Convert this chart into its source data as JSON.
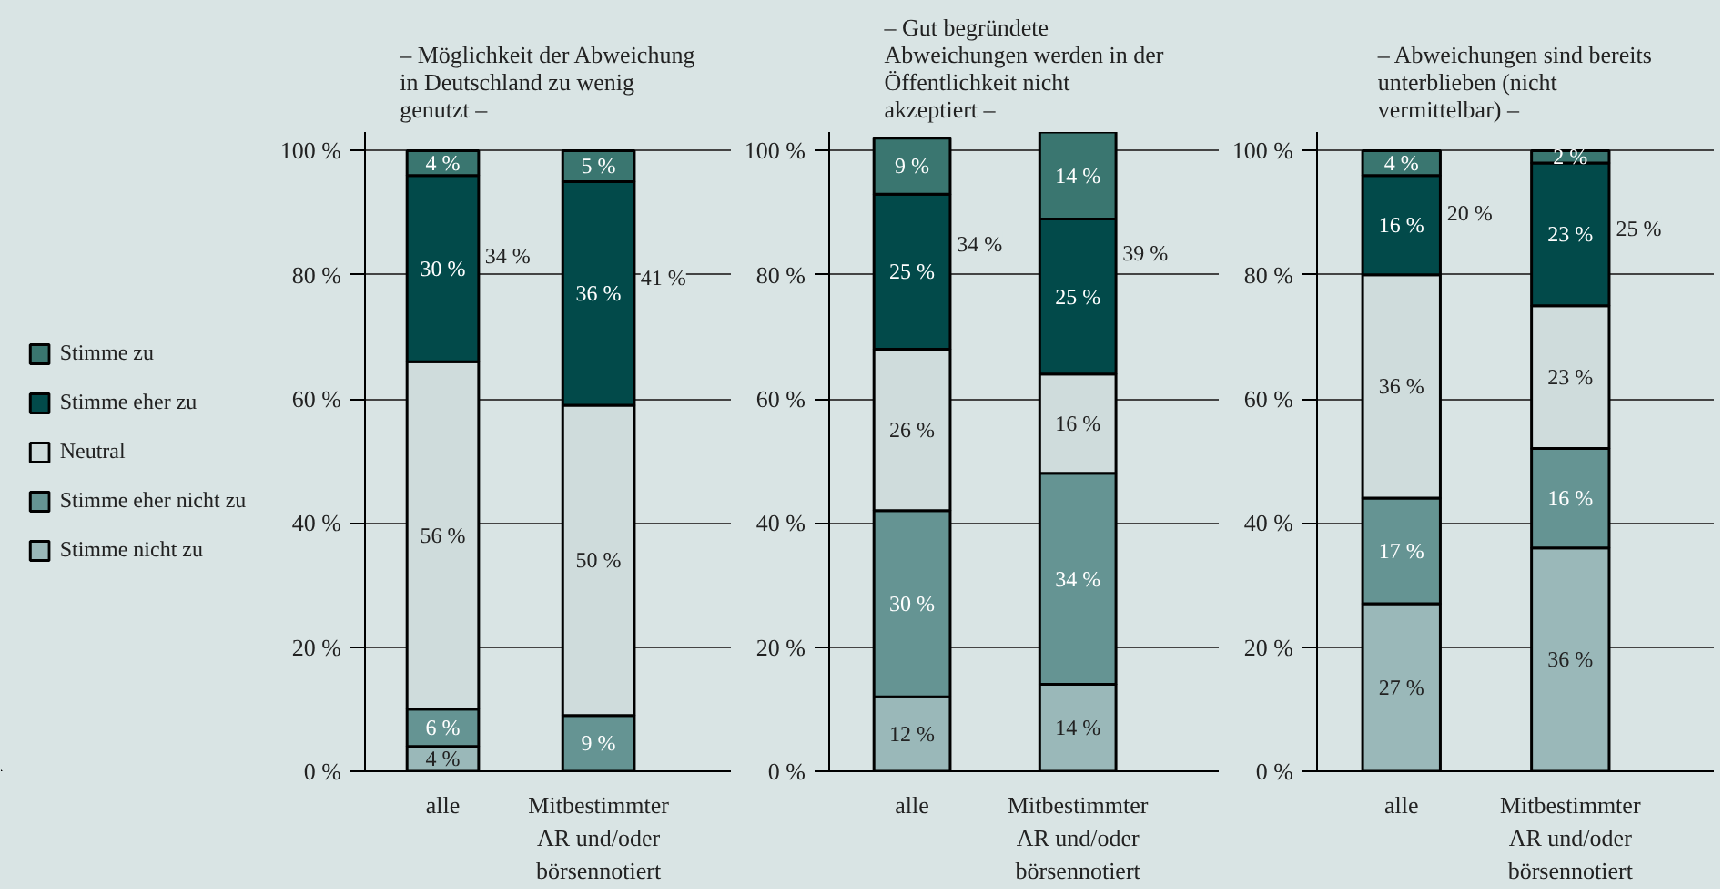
{
  "chart_data": [
    {
      "type": "bar",
      "title": "– Möglichkeit der Abweichung in Deutschland zu wenig genutzt –",
      "categories": [
        "alle",
        "Mitbestimmter AR und/oder börsennotiert"
      ],
      "stacked": true,
      "grid": "y",
      "legend": "left",
      "ylim": [
        0,
        103
      ],
      "yticks": [
        {
          "value": 0,
          "label": "0 %"
        },
        {
          "value": 20,
          "label": "20 %"
        },
        {
          "value": 40,
          "label": "40 %"
        },
        {
          "value": 60,
          "label": "60 %"
        },
        {
          "value": 80,
          "label": "80 %"
        },
        {
          "value": 100,
          "label": "100 %"
        }
      ],
      "series": [
        {
          "name": "Stimme nicht zu",
          "color": "#9ab8b9",
          "values": [
            4,
            0
          ],
          "value_labels": [
            "4 %",
            null
          ]
        },
        {
          "name": "Stimme eher nicht zu",
          "color": "#659493",
          "values": [
            6,
            9
          ],
          "value_labels": [
            "6 %",
            "9 %"
          ]
        },
        {
          "name": "Neutral",
          "color": "#cfdcdc",
          "values": [
            56,
            50
          ],
          "value_labels": [
            "56 %",
            "50 %"
          ]
        },
        {
          "name": "Stimme eher zu",
          "color": "#024a4a",
          "values": [
            30,
            36
          ],
          "value_labels": [
            "30 %",
            "36 %"
          ]
        },
        {
          "name": "Stimme zu",
          "color": "#3a7670",
          "values": [
            4,
            5
          ],
          "value_labels": [
            "4 %",
            "5 %"
          ]
        }
      ],
      "annotations": [
        "34 %",
        "41 %"
      ]
    },
    {
      "type": "bar",
      "title": "– Gut begründete Abweichungen werden in der Öffentlichkeit nicht akzeptiert –",
      "categories": [
        "alle",
        "Mitbestimmter AR und/oder börsennotiert"
      ],
      "stacked": true,
      "grid": "y",
      "ylim": [
        0,
        103
      ],
      "yticks": [
        {
          "value": 0,
          "label": "0 %"
        },
        {
          "value": 20,
          "label": "20 %"
        },
        {
          "value": 40,
          "label": "40 %"
        },
        {
          "value": 60,
          "label": "60 %"
        },
        {
          "value": 80,
          "label": "80 %"
        },
        {
          "value": 100,
          "label": "100 %"
        }
      ],
      "series": [
        {
          "color": "#9ab8b9",
          "values": [
            12,
            14
          ],
          "value_labels": [
            "12 %",
            "14 %"
          ]
        },
        {
          "color": "#659493",
          "values": [
            30,
            34
          ],
          "value_labels": [
            "30 %",
            "34 %"
          ]
        },
        {
          "color": "#cfdcdc",
          "values": [
            26,
            16
          ],
          "value_labels": [
            "26 %",
            "16 %"
          ]
        },
        {
          "color": "#024a4a",
          "values": [
            25,
            25
          ],
          "value_labels": [
            "25 %",
            "25 %"
          ]
        },
        {
          "color": "#3a7670",
          "values": [
            9,
            14
          ],
          "value_labels": [
            "9 %",
            "14 %"
          ]
        }
      ],
      "annotations": [
        "34 %",
        "39 %"
      ]
    },
    {
      "type": "bar",
      "title": "– Abweichungen sind bereits unterblieben (nicht vermittelbar) –",
      "categories": [
        "alle",
        "Mitbestimmter AR und/oder börsennotiert"
      ],
      "stacked": true,
      "grid": "y",
      "ylim": [
        0,
        103
      ],
      "yticks": [
        {
          "value": 0,
          "label": "0 %"
        },
        {
          "value": 20,
          "label": "20 %"
        },
        {
          "value": 40,
          "label": "40 %"
        },
        {
          "value": 60,
          "label": "60 %"
        },
        {
          "value": 80,
          "label": "80 %"
        },
        {
          "value": 100,
          "label": "100 %"
        }
      ],
      "series": [
        {
          "color": "#9ab8b9",
          "values": [
            27,
            36
          ],
          "value_labels": [
            "27 %",
            "36 %"
          ]
        },
        {
          "color": "#659493",
          "values": [
            17,
            16
          ],
          "value_labels": [
            "17 %",
            "16 %"
          ]
        },
        {
          "color": "#cfdcdc",
          "values": [
            36,
            23
          ],
          "value_labels": [
            "36 %",
            "23 %"
          ]
        },
        {
          "color": "#024a4a",
          "values": [
            16,
            23
          ],
          "value_labels": [
            "16 %",
            "23 %"
          ]
        },
        {
          "color": "#3a7670",
          "values": [
            4,
            2
          ],
          "value_labels": [
            "4 %",
            "2 %"
          ]
        }
      ],
      "annotations": [
        "20 %",
        "25 %"
      ]
    }
  ]
}
